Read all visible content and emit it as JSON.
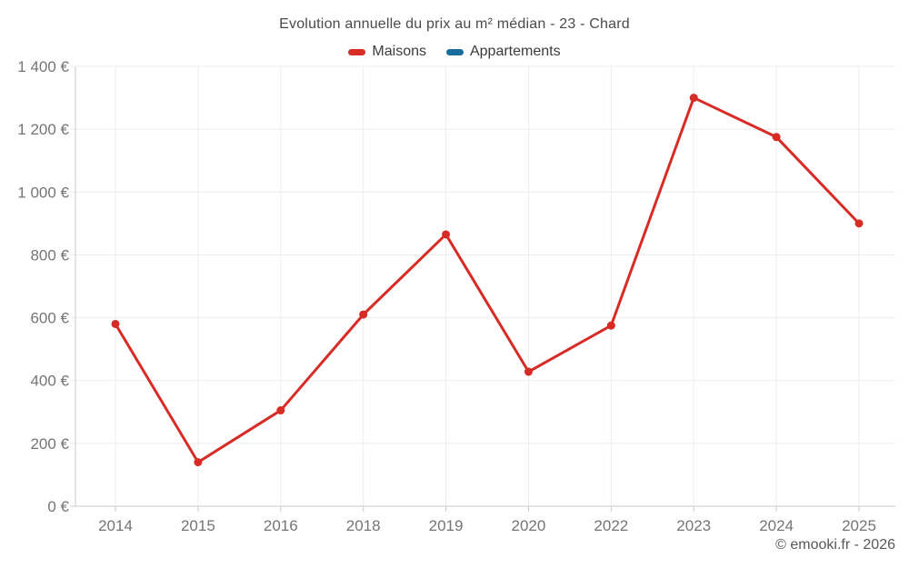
{
  "header": {
    "title": "Evolution annuelle du prix au m² médian - 23 - Chard"
  },
  "footer": {
    "credit": "© emooki.fr - 2026"
  },
  "colors": {
    "maisons_red": "#d92b26",
    "appartements_blue": "#186d9c",
    "grid_line": "#ececec",
    "axis_line": "#c9c9c9",
    "tick_text": "#757575",
    "title_text": "#4a4a4a",
    "legend_text": "#3b3b3b",
    "footer_text": "#585858"
  },
  "chart_data": {
    "type": "line",
    "title": "Evolution annuelle du prix au m² médian - 23 - Chard",
    "categories": [
      "2014",
      "2015",
      "2016",
      "2018",
      "2019",
      "2020",
      "2022",
      "2023",
      "2024",
      "2025"
    ],
    "series": [
      {
        "name": "Maisons",
        "color": "#d92b26",
        "values": [
          580,
          140,
          305,
          610,
          865,
          428,
          575,
          1300,
          1175,
          900
        ]
      },
      {
        "name": "Appartements",
        "color": "#186d9c",
        "values": []
      }
    ],
    "xlabel": "",
    "ylabel": "",
    "ylim": [
      0,
      1400
    ],
    "ytick_step": 200,
    "yticks": [
      {
        "value": 0,
        "label": "0 €"
      },
      {
        "value": 200,
        "label": "200 €"
      },
      {
        "value": 400,
        "label": "400 €"
      },
      {
        "value": 600,
        "label": "600 €"
      },
      {
        "value": 800,
        "label": "800 €"
      },
      {
        "value": 1000,
        "label": "1 000 €"
      },
      {
        "value": 1200,
        "label": "1 200 €"
      },
      {
        "value": 1400,
        "label": "1 400 €"
      }
    ],
    "grid": true,
    "legend_position": "top",
    "currency": "€"
  }
}
